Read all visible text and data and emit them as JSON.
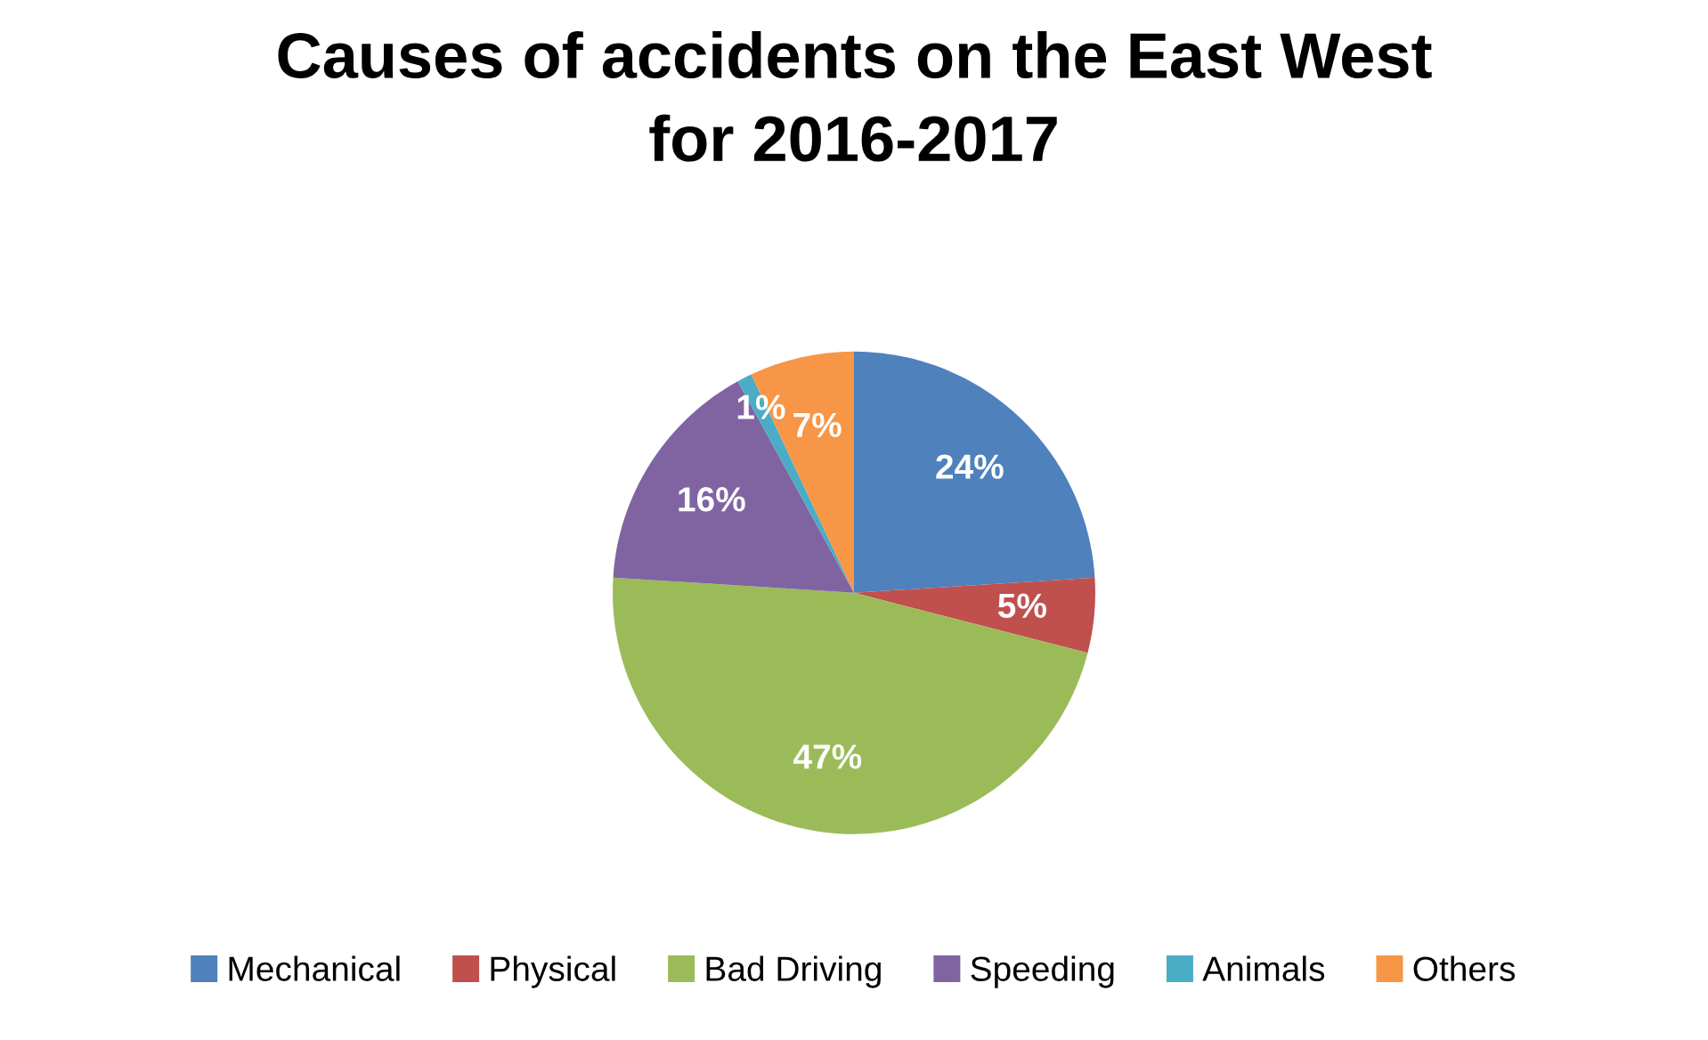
{
  "chart_data": {
    "type": "pie",
    "title": "Causes of accidents on the East West\nfor 2016-2017",
    "categories": [
      "Mechanical",
      "Physical",
      "Bad Driving",
      "Speeding",
      "Animals",
      "Others"
    ],
    "values": [
      24,
      5,
      47,
      16,
      1,
      7
    ],
    "value_labels": [
      "24%",
      "5%",
      "47%",
      "16%",
      "1%",
      "7%"
    ],
    "colors": [
      "#4f81bd",
      "#c0504d",
      "#9bbb59",
      "#8064a2",
      "#4bacc6",
      "#f79646"
    ],
    "legend": "bottom"
  }
}
